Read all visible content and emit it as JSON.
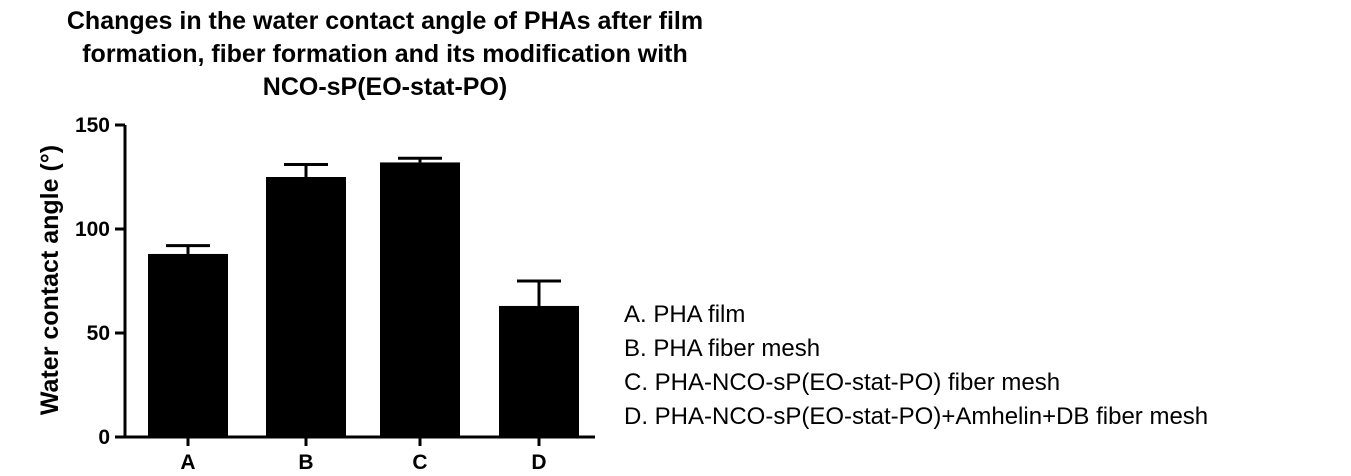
{
  "chart_data": {
    "type": "bar",
    "title_lines": [
      "Changes in the water contact angle of PHAs after film",
      "formation, fiber formation and its modification with",
      "NCO-sP(EO-stat-PO)"
    ],
    "ylabel": "Water contact angle (°)",
    "xlabel": "",
    "categories": [
      "A",
      "B",
      "C",
      "D"
    ],
    "values": [
      88,
      125,
      132,
      63
    ],
    "errors": [
      4,
      6,
      2,
      12
    ],
    "ylim": [
      0,
      150
    ],
    "yticks": [
      "0",
      "50",
      "100",
      "150"
    ],
    "legend_position": "right",
    "legend_entries": [
      "A. PHA film",
      "B. PHA fiber mesh",
      "C. PHA-NCO-sP(EO-stat-PO) fiber mesh",
      "D. PHA-NCO-sP(EO-stat-PO)+Amhelin+DB fiber mesh"
    ],
    "bar_color": "#000000",
    "grid": false
  }
}
